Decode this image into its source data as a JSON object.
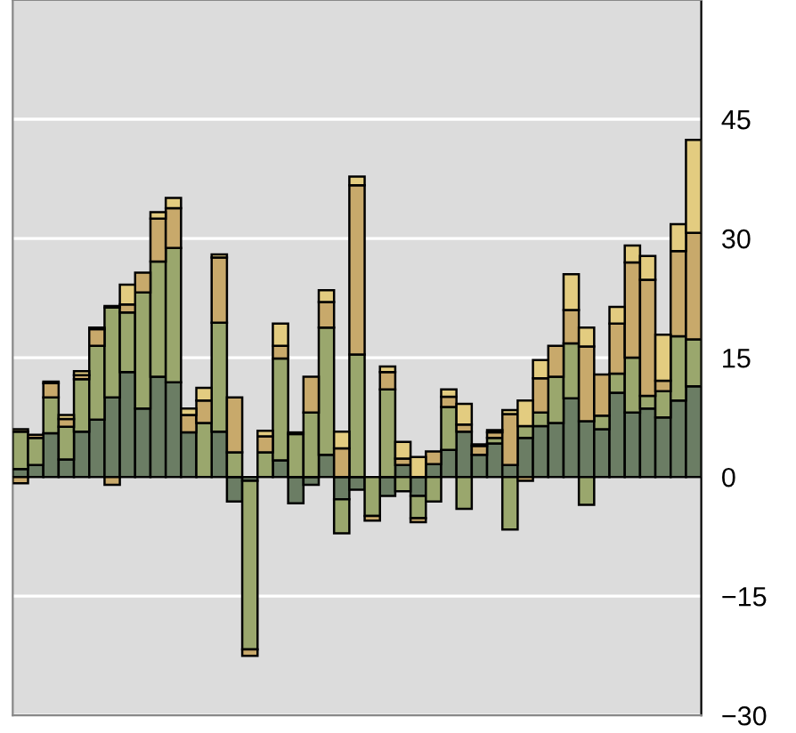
{
  "chart_data": {
    "type": "bar",
    "stacked": true,
    "categories": [
      null,
      null,
      null,
      null,
      null,
      null,
      null,
      null,
      null,
      null,
      null,
      null,
      null,
      null,
      null,
      null,
      null,
      null,
      null,
      null,
      null,
      null,
      null,
      null,
      null,
      null,
      null,
      null,
      null,
      null,
      null,
      null,
      null,
      null,
      null,
      null,
      null,
      null,
      null,
      null,
      null,
      null,
      null,
      null,
      null
    ],
    "series": [
      {
        "color": "#6b7d64",
        "values": [
          1,
          1.5,
          5.5,
          2.2,
          5.7,
          7.2,
          10,
          13.2,
          8.6,
          12.6,
          11.9,
          5.6,
          null,
          5.7,
          -3.1,
          -0.5,
          null,
          2.1,
          -3.3,
          -1,
          2.8,
          -2.8,
          -1.6,
          null,
          -2.4,
          1.5,
          -2.4,
          1.6,
          3.4,
          5.7,
          2.8,
          4.2,
          1.5,
          4.9,
          6.4,
          6.8,
          9.9,
          7,
          6,
          10.6,
          8.1,
          8.6,
          7.5,
          9.6,
          11.4
        ]
      },
      {
        "color": "#9aa76d",
        "values": [
          4.7,
          3.4,
          4.5,
          4.1,
          6.6,
          9.3,
          11.3,
          7.5,
          14.6,
          14.5,
          16.9,
          null,
          6.8,
          13.7,
          3.1,
          -21.2,
          3.1,
          12.8,
          5.4,
          8.1,
          16,
          -4.3,
          15.4,
          -4.9,
          11,
          -1.8,
          -2.8,
          -3.1,
          5.4,
          -4,
          null,
          0.7,
          -6.6,
          1.5,
          1.7,
          5.8,
          6.9,
          -3.5,
          1.7,
          2.4,
          6.9,
          1.6,
          3.3,
          8.1,
          5.9
        ]
      },
      {
        "color": "#c8a96b",
        "values": [
          -0.8,
          0.4,
          1.8,
          1,
          0.5,
          2.1,
          -1,
          1,
          2.5,
          5.4,
          5,
          2.2,
          2.8,
          8.2,
          6.9,
          -0.8,
          2,
          1.6,
          0.2,
          4.5,
          3.2,
          3.6,
          21.3,
          -0.6,
          2.2,
          0.8,
          -0.5,
          1.6,
          1.3,
          0.9,
          1.1,
          0.7,
          6.4,
          -0.5,
          4.3,
          3.9,
          4.2,
          9.4,
          5.2,
          6.3,
          12,
          14.6,
          1.3,
          10.7,
          13.4
        ]
      },
      {
        "color": "#e3cc80",
        "values": [
          0.3,
          null,
          0.2,
          0.5,
          0.5,
          0.2,
          0.2,
          2.5,
          null,
          0.8,
          1.3,
          0.8,
          1.6,
          0.4,
          null,
          null,
          0.7,
          2.8,
          null,
          null,
          1.5,
          2.1,
          1.1,
          null,
          0.7,
          2.1,
          2.5,
          null,
          0.9,
          2.6,
          0.2,
          0.3,
          0.5,
          3.2,
          2.3,
          null,
          4.5,
          2.4,
          null,
          2.1,
          2.1,
          3,
          5.8,
          3.4,
          11.7
        ]
      }
    ],
    "ylim": [
      -30,
      60
    ],
    "yticks": [
      {
        "value": -30,
        "label": "−30"
      },
      {
        "value": -15,
        "label": "−15"
      },
      0,
      15,
      30,
      45
    ],
    "tick_labels": "y",
    "grid": "y"
  }
}
